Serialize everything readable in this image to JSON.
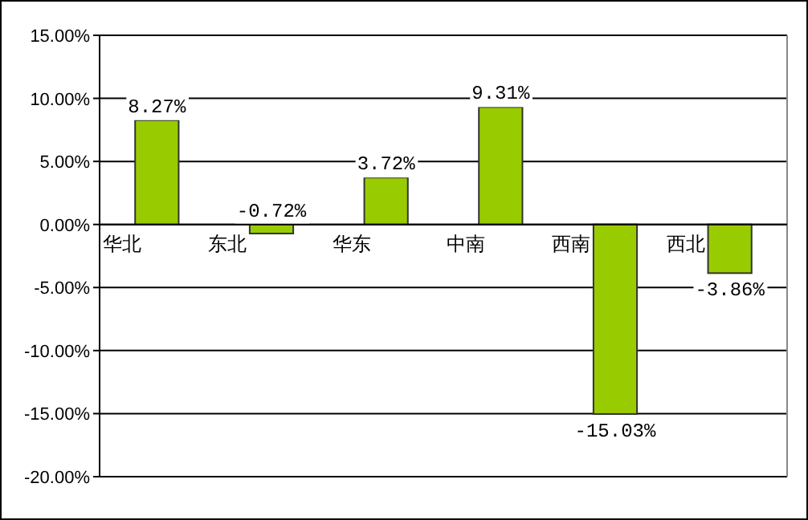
{
  "chart_data": {
    "type": "bar",
    "categories": [
      "华北",
      "东北",
      "华东",
      "中南",
      "西南",
      "西北"
    ],
    "values": [
      8.27,
      -0.72,
      3.72,
      9.31,
      -15.03,
      -3.86
    ],
    "value_labels": [
      "8.27%",
      "-0.72%",
      "3.72%",
      "9.31%",
      "-15.03%",
      "-3.86%"
    ],
    "color": "#99cc00",
    "ylim": [
      -20,
      15
    ],
    "yticks": [
      {
        "value": -20,
        "label": "-20.00%"
      },
      {
        "value": -15,
        "label": "-15.00%"
      },
      {
        "value": -10,
        "label": "-10.00%"
      },
      {
        "value": -5,
        "label": "-5.00%"
      },
      {
        "value": 0,
        "label": "0.00%"
      },
      {
        "value": 5,
        "label": "5.00%"
      },
      {
        "value": 10,
        "label": "10.00%"
      },
      {
        "value": 15,
        "label": "15.00%"
      }
    ],
    "grid": "y"
  }
}
